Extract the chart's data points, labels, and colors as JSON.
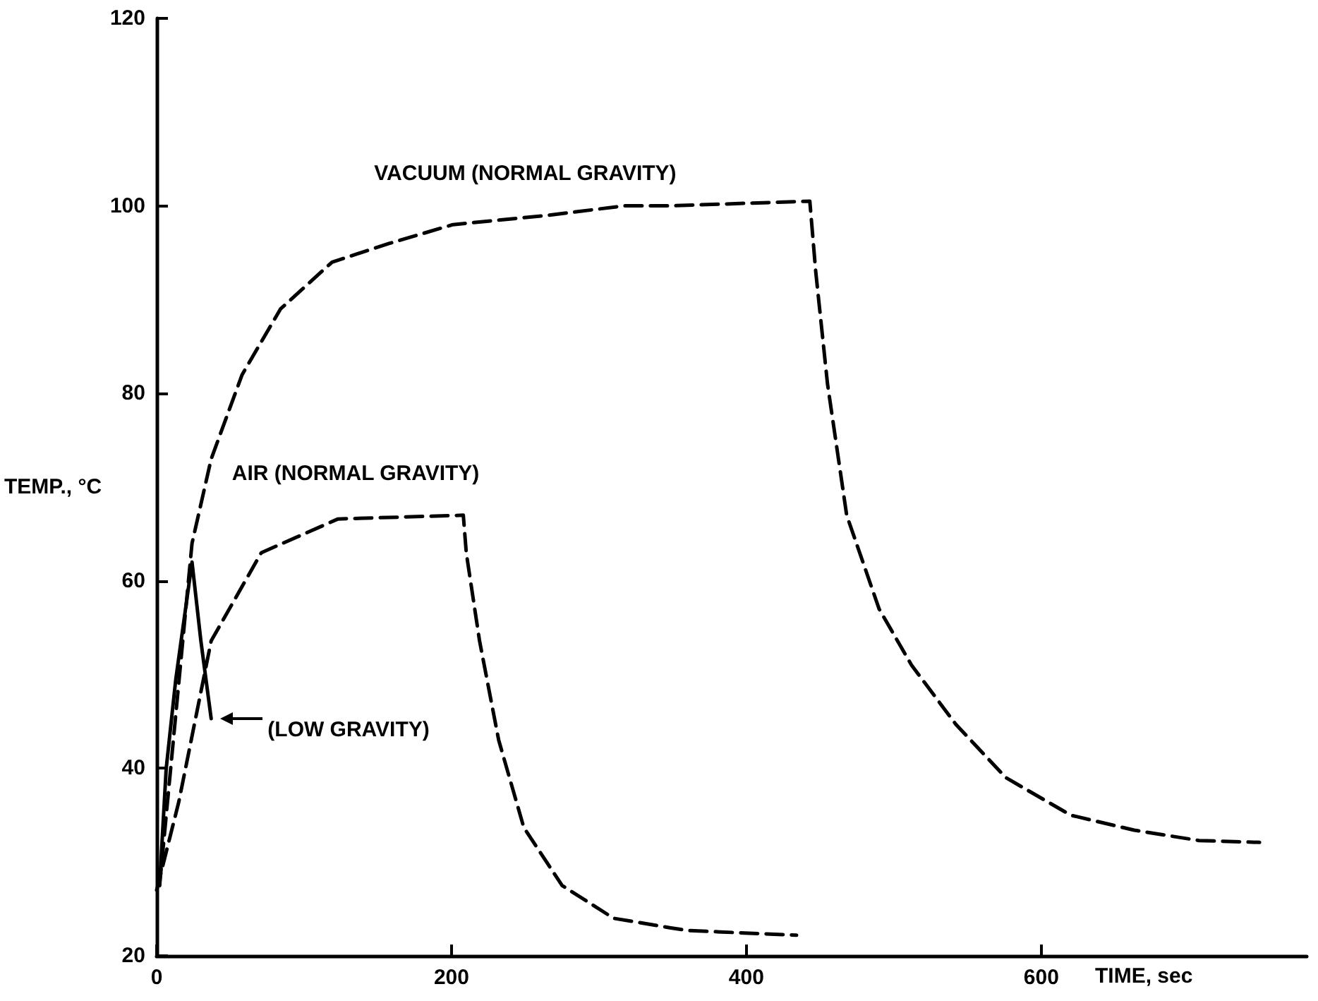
{
  "chart_data": {
    "type": "line",
    "xlabel": "TIME, sec",
    "ylabel": "TEMP., °C",
    "xlim": [
      0,
      780
    ],
    "xticks": [
      0,
      200,
      400,
      600
    ],
    "ylim": [
      20,
      120
    ],
    "yticks": [
      20,
      40,
      60,
      80,
      100,
      120
    ],
    "marker": "none",
    "series": [
      {
        "color": "#000000",
        "line_style": "dashed",
        "x": [
          2,
          24,
          37,
          58,
          84,
          119,
          158,
          201,
          266,
          317,
          348,
          443,
          447,
          455,
          468,
          490,
          512,
          542,
          576,
          620,
          663,
          707,
          748
        ],
        "values": [
          27.5,
          64,
          73,
          82,
          89,
          94,
          96,
          98,
          99,
          100,
          100,
          100.5,
          93,
          81,
          67,
          57,
          51,
          44.7,
          39,
          35,
          33.4,
          32.3,
          32.1
        ]
      },
      {
        "color": "#000000",
        "line_style": "dashed",
        "x": [
          0,
          15,
          37,
          71,
          123,
          208,
          210,
          219,
          232,
          249,
          275,
          310,
          348,
          360,
          434
        ],
        "values": [
          27,
          36.4,
          53.6,
          63,
          66.6,
          67,
          63,
          53.6,
          43,
          33.7,
          27.5,
          24,
          23,
          22.7,
          22.2
        ]
      },
      {
        "color": "#000000",
        "line_style": "solid",
        "x": [
          2,
          6.5,
          13,
          24,
          30,
          37
        ],
        "values": [
          27.5,
          40,
          49.5,
          62,
          53.6,
          45.3
        ]
      }
    ],
    "annotations": [
      {
        "text": "VACUUM (NORMAL GRAVITY)",
        "x": 250,
        "y": 99
      },
      {
        "text": "AIR (NORMAL GRAVITY)",
        "x": 135,
        "y": 67
      },
      {
        "text": "(LOW GRAVITY)",
        "x": 37,
        "y": 45.3
      }
    ]
  }
}
